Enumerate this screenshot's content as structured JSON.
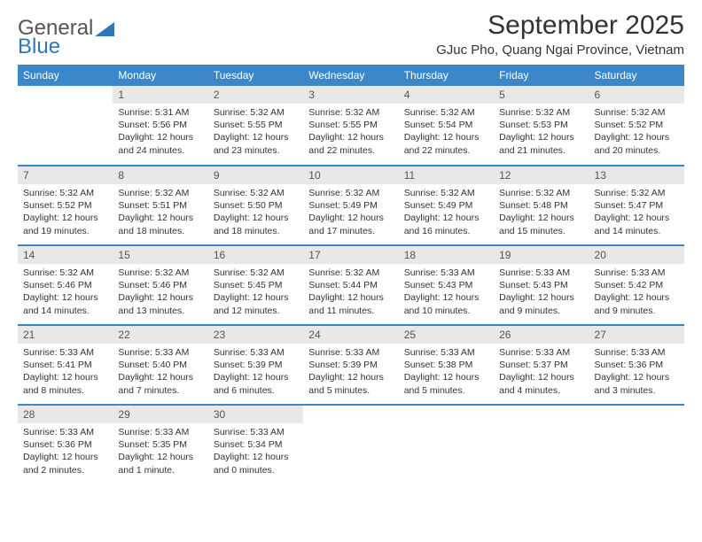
{
  "logo": {
    "part1": "General",
    "part2": "Blue"
  },
  "title": "September 2025",
  "location": "GJuc Pho, Quang Ngai Province, Vietnam",
  "header_bg": "#3b87c8",
  "daynum_bg": "#e8e8e8",
  "row_border": "#3b87c8",
  "weekdays": [
    "Sunday",
    "Monday",
    "Tuesday",
    "Wednesday",
    "Thursday",
    "Friday",
    "Saturday"
  ],
  "cells": [
    [
      null,
      {
        "n": "1",
        "sr": "5:31 AM",
        "ss": "5:56 PM",
        "dl": "12 hours and 24 minutes."
      },
      {
        "n": "2",
        "sr": "5:32 AM",
        "ss": "5:55 PM",
        "dl": "12 hours and 23 minutes."
      },
      {
        "n": "3",
        "sr": "5:32 AM",
        "ss": "5:55 PM",
        "dl": "12 hours and 22 minutes."
      },
      {
        "n": "4",
        "sr": "5:32 AM",
        "ss": "5:54 PM",
        "dl": "12 hours and 22 minutes."
      },
      {
        "n": "5",
        "sr": "5:32 AM",
        "ss": "5:53 PM",
        "dl": "12 hours and 21 minutes."
      },
      {
        "n": "6",
        "sr": "5:32 AM",
        "ss": "5:52 PM",
        "dl": "12 hours and 20 minutes."
      }
    ],
    [
      {
        "n": "7",
        "sr": "5:32 AM",
        "ss": "5:52 PM",
        "dl": "12 hours and 19 minutes."
      },
      {
        "n": "8",
        "sr": "5:32 AM",
        "ss": "5:51 PM",
        "dl": "12 hours and 18 minutes."
      },
      {
        "n": "9",
        "sr": "5:32 AM",
        "ss": "5:50 PM",
        "dl": "12 hours and 18 minutes."
      },
      {
        "n": "10",
        "sr": "5:32 AM",
        "ss": "5:49 PM",
        "dl": "12 hours and 17 minutes."
      },
      {
        "n": "11",
        "sr": "5:32 AM",
        "ss": "5:49 PM",
        "dl": "12 hours and 16 minutes."
      },
      {
        "n": "12",
        "sr": "5:32 AM",
        "ss": "5:48 PM",
        "dl": "12 hours and 15 minutes."
      },
      {
        "n": "13",
        "sr": "5:32 AM",
        "ss": "5:47 PM",
        "dl": "12 hours and 14 minutes."
      }
    ],
    [
      {
        "n": "14",
        "sr": "5:32 AM",
        "ss": "5:46 PM",
        "dl": "12 hours and 14 minutes."
      },
      {
        "n": "15",
        "sr": "5:32 AM",
        "ss": "5:46 PM",
        "dl": "12 hours and 13 minutes."
      },
      {
        "n": "16",
        "sr": "5:32 AM",
        "ss": "5:45 PM",
        "dl": "12 hours and 12 minutes."
      },
      {
        "n": "17",
        "sr": "5:32 AM",
        "ss": "5:44 PM",
        "dl": "12 hours and 11 minutes."
      },
      {
        "n": "18",
        "sr": "5:33 AM",
        "ss": "5:43 PM",
        "dl": "12 hours and 10 minutes."
      },
      {
        "n": "19",
        "sr": "5:33 AM",
        "ss": "5:43 PM",
        "dl": "12 hours and 9 minutes."
      },
      {
        "n": "20",
        "sr": "5:33 AM",
        "ss": "5:42 PM",
        "dl": "12 hours and 9 minutes."
      }
    ],
    [
      {
        "n": "21",
        "sr": "5:33 AM",
        "ss": "5:41 PM",
        "dl": "12 hours and 8 minutes."
      },
      {
        "n": "22",
        "sr": "5:33 AM",
        "ss": "5:40 PM",
        "dl": "12 hours and 7 minutes."
      },
      {
        "n": "23",
        "sr": "5:33 AM",
        "ss": "5:39 PM",
        "dl": "12 hours and 6 minutes."
      },
      {
        "n": "24",
        "sr": "5:33 AM",
        "ss": "5:39 PM",
        "dl": "12 hours and 5 minutes."
      },
      {
        "n": "25",
        "sr": "5:33 AM",
        "ss": "5:38 PM",
        "dl": "12 hours and 5 minutes."
      },
      {
        "n": "26",
        "sr": "5:33 AM",
        "ss": "5:37 PM",
        "dl": "12 hours and 4 minutes."
      },
      {
        "n": "27",
        "sr": "5:33 AM",
        "ss": "5:36 PM",
        "dl": "12 hours and 3 minutes."
      }
    ],
    [
      {
        "n": "28",
        "sr": "5:33 AM",
        "ss": "5:36 PM",
        "dl": "12 hours and 2 minutes."
      },
      {
        "n": "29",
        "sr": "5:33 AM",
        "ss": "5:35 PM",
        "dl": "12 hours and 1 minute."
      },
      {
        "n": "30",
        "sr": "5:33 AM",
        "ss": "5:34 PM",
        "dl": "12 hours and 0 minutes."
      },
      null,
      null,
      null,
      null
    ]
  ],
  "labels": {
    "sunrise": "Sunrise:",
    "sunset": "Sunset:",
    "daylight": "Daylight:"
  }
}
